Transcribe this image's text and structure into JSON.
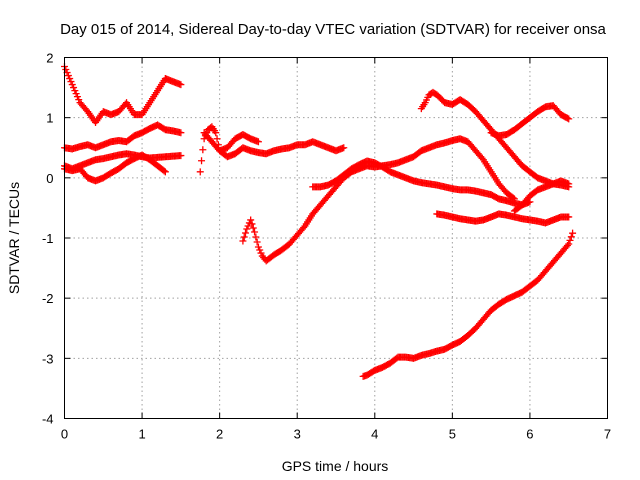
{
  "chart_data": {
    "type": "scatter",
    "title": "Day 015 of 2014, Sidereal Day-to-day VTEC variation (SDTVAR) for receiver onsa",
    "xlabel": "GPS time / hours",
    "ylabel": "SDTVAR / TECUs",
    "xlim": [
      0,
      7
    ],
    "ylim": [
      -4,
      2
    ],
    "xticks": [
      0,
      1,
      2,
      3,
      4,
      5,
      6,
      7
    ],
    "yticks": [
      -4,
      -3,
      -2,
      -1,
      0,
      1,
      2
    ],
    "grid": true,
    "marker": "plus",
    "color": "#ff0000",
    "series": [
      {
        "x": [
          0.0,
          0.1,
          0.2,
          0.3,
          0.4,
          0.5,
          0.6,
          0.7,
          0.8,
          0.9,
          1.0,
          1.1,
          1.2,
          1.3,
          1.4,
          1.5
        ],
        "y": [
          1.85,
          1.55,
          1.25,
          1.1,
          0.92,
          1.1,
          1.05,
          1.1,
          1.25,
          1.05,
          1.05,
          1.25,
          1.45,
          1.65,
          1.6,
          1.55
        ]
      },
      {
        "x": [
          0.0,
          0.1,
          0.2,
          0.3,
          0.4,
          0.5,
          0.6,
          0.7,
          0.8,
          0.9,
          1.0,
          1.1,
          1.2,
          1.3,
          1.4,
          1.5
        ],
        "y": [
          0.5,
          0.48,
          0.52,
          0.55,
          0.5,
          0.55,
          0.6,
          0.62,
          0.6,
          0.7,
          0.75,
          0.82,
          0.88,
          0.8,
          0.78,
          0.75
        ]
      },
      {
        "x": [
          0.0,
          0.1,
          0.2,
          0.3,
          0.4,
          0.5,
          0.6,
          0.7,
          0.8,
          0.9,
          1.0,
          1.1,
          1.2,
          1.3,
          1.4,
          1.5
        ],
        "y": [
          0.2,
          0.15,
          0.2,
          0.25,
          0.3,
          0.32,
          0.35,
          0.38,
          0.4,
          0.38,
          0.35,
          0.33,
          0.34,
          0.35,
          0.36,
          0.37
        ]
      },
      {
        "x": [
          0.0,
          0.1,
          0.2,
          0.3,
          0.4,
          0.5,
          0.6,
          0.7,
          0.8,
          0.9,
          1.0,
          1.1,
          1.2,
          1.3
        ],
        "y": [
          0.15,
          0.12,
          0.15,
          0.0,
          -0.05,
          0.0,
          0.08,
          0.15,
          0.25,
          0.32,
          0.38,
          0.3,
          0.2,
          0.1
        ]
      },
      {
        "x": [
          1.75,
          1.8,
          1.85,
          1.9,
          1.95,
          2.0,
          2.1,
          2.2,
          2.3,
          2.4,
          2.5,
          2.6,
          2.7,
          2.8,
          2.9,
          3.0,
          3.1,
          3.2,
          3.3,
          3.4,
          3.5,
          3.6
        ],
        "y": [
          0.1,
          0.65,
          0.8,
          0.85,
          0.75,
          0.45,
          0.35,
          0.4,
          0.5,
          0.45,
          0.42,
          0.4,
          0.45,
          0.48,
          0.5,
          0.55,
          0.55,
          0.6,
          0.55,
          0.5,
          0.45,
          0.5
        ]
      },
      {
        "x": [
          1.8,
          1.9,
          2.0,
          2.1,
          2.2,
          2.3,
          2.4,
          2.5
        ],
        "y": [
          0.75,
          0.6,
          0.45,
          0.5,
          0.65,
          0.72,
          0.65,
          0.6
        ]
      },
      {
        "x": [
          2.3,
          2.35,
          2.4,
          2.45,
          2.5,
          2.55,
          2.6,
          2.7,
          2.8,
          2.9,
          3.0,
          3.1,
          3.2,
          3.3,
          3.4,
          3.5,
          3.6,
          3.7,
          3.8,
          3.9,
          4.0,
          4.1,
          4.2,
          4.3,
          4.4,
          4.5,
          4.6,
          4.7,
          4.8,
          4.9,
          5.0,
          5.1,
          5.2,
          5.3,
          5.4,
          5.5,
          5.6,
          5.7,
          5.8
        ],
        "y": [
          -1.05,
          -0.85,
          -0.7,
          -0.9,
          -1.15,
          -1.3,
          -1.38,
          -1.28,
          -1.2,
          -1.1,
          -0.95,
          -0.8,
          -0.6,
          -0.45,
          -0.3,
          -0.15,
          0.0,
          0.1,
          0.15,
          0.2,
          0.18,
          0.2,
          0.22,
          0.25,
          0.3,
          0.35,
          0.45,
          0.5,
          0.55,
          0.58,
          0.62,
          0.65,
          0.6,
          0.45,
          0.3,
          0.1,
          -0.1,
          -0.25,
          -0.35
        ]
      },
      {
        "x": [
          3.2,
          3.3,
          3.4,
          3.5,
          3.6,
          3.7,
          3.8,
          3.9,
          4.0,
          4.1,
          4.2,
          4.3,
          4.4,
          4.5,
          4.6,
          4.7,
          4.8,
          4.9,
          5.0,
          5.1,
          5.2,
          5.3,
          5.4,
          5.5,
          5.6,
          5.7,
          5.8,
          5.9,
          6.0
        ],
        "y": [
          -0.15,
          -0.15,
          -0.12,
          -0.05,
          0.05,
          0.15,
          0.22,
          0.28,
          0.25,
          0.18,
          0.1,
          0.05,
          0.0,
          -0.05,
          -0.08,
          -0.1,
          -0.12,
          -0.15,
          -0.18,
          -0.2,
          -0.2,
          -0.22,
          -0.25,
          -0.28,
          -0.35,
          -0.38,
          -0.42,
          -0.45,
          -0.4
        ]
      },
      {
        "x": [
          4.6,
          4.65,
          4.7,
          4.75,
          4.8,
          4.85,
          4.9,
          5.0,
          5.1,
          5.2,
          5.3,
          5.4,
          5.5,
          5.6,
          5.7,
          5.8,
          5.9,
          6.0,
          6.1,
          6.2,
          6.3,
          6.4,
          6.5
        ],
        "y": [
          1.15,
          1.25,
          1.38,
          1.42,
          1.38,
          1.32,
          1.25,
          1.22,
          1.3,
          1.22,
          1.1,
          0.95,
          0.8,
          0.65,
          0.5,
          0.35,
          0.2,
          0.1,
          0.0,
          -0.05,
          -0.1,
          -0.12,
          -0.15
        ]
      },
      {
        "x": [
          5.5,
          5.6,
          5.7,
          5.8,
          5.9,
          6.0,
          6.1,
          6.2,
          6.3,
          6.4,
          6.5
        ],
        "y": [
          0.75,
          0.7,
          0.72,
          0.8,
          0.9,
          1.0,
          1.1,
          1.18,
          1.2,
          1.05,
          0.98
        ]
      },
      {
        "x": [
          4.8,
          4.9,
          5.0,
          5.1,
          5.2,
          5.3,
          5.4,
          5.5,
          5.6,
          5.7,
          5.8,
          5.9,
          6.0,
          6.1,
          6.2,
          6.3,
          6.4,
          6.5
        ],
        "y": [
          -0.6,
          -0.62,
          -0.65,
          -0.68,
          -0.7,
          -0.72,
          -0.7,
          -0.65,
          -0.6,
          -0.62,
          -0.65,
          -0.68,
          -0.7,
          -0.72,
          -0.75,
          -0.7,
          -0.65,
          -0.65
        ]
      },
      {
        "x": [
          5.8,
          5.9,
          6.0,
          6.1,
          6.2,
          6.3,
          6.4,
          6.5
        ],
        "y": [
          -0.55,
          -0.45,
          -0.3,
          -0.2,
          -0.15,
          -0.1,
          -0.05,
          -0.1
        ]
      },
      {
        "x": [
          3.85,
          3.9,
          4.0,
          4.1,
          4.2,
          4.3,
          4.4,
          4.5,
          4.6,
          4.7,
          4.8,
          4.9,
          5.0,
          5.1,
          5.2,
          5.3,
          5.4,
          5.5,
          5.6,
          5.7,
          5.8,
          5.9,
          6.0,
          6.1,
          6.2,
          6.3,
          6.4,
          6.5,
          6.55
        ],
        "y": [
          -3.3,
          -3.28,
          -3.2,
          -3.15,
          -3.08,
          -2.98,
          -2.98,
          -3.0,
          -2.95,
          -2.92,
          -2.88,
          -2.85,
          -2.78,
          -2.72,
          -2.62,
          -2.5,
          -2.35,
          -2.2,
          -2.1,
          -2.02,
          -1.96,
          -1.9,
          -1.8,
          -1.7,
          -1.55,
          -1.4,
          -1.25,
          -1.1,
          -0.92
        ]
      }
    ]
  }
}
